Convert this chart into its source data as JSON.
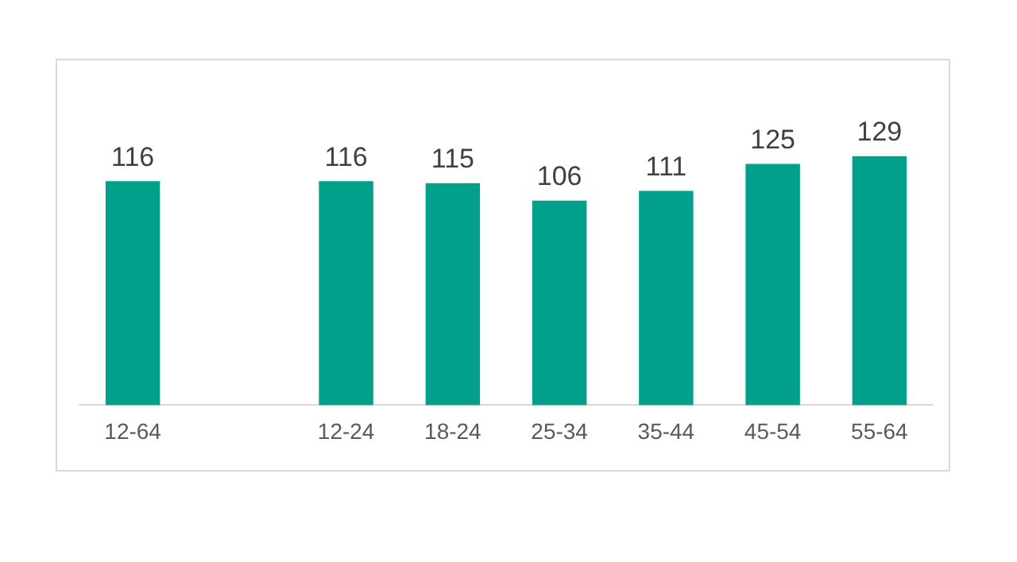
{
  "chart_data": {
    "type": "bar",
    "categories": [
      "12-64",
      null,
      "12-24",
      "18-24",
      "25-34",
      "35-44",
      "45-54",
      "55-64"
    ],
    "values": [
      116,
      null,
      116,
      115,
      106,
      111,
      125,
      129
    ],
    "color": "#00a08a",
    "data_labels": true,
    "grid": false,
    "legend": false
  }
}
